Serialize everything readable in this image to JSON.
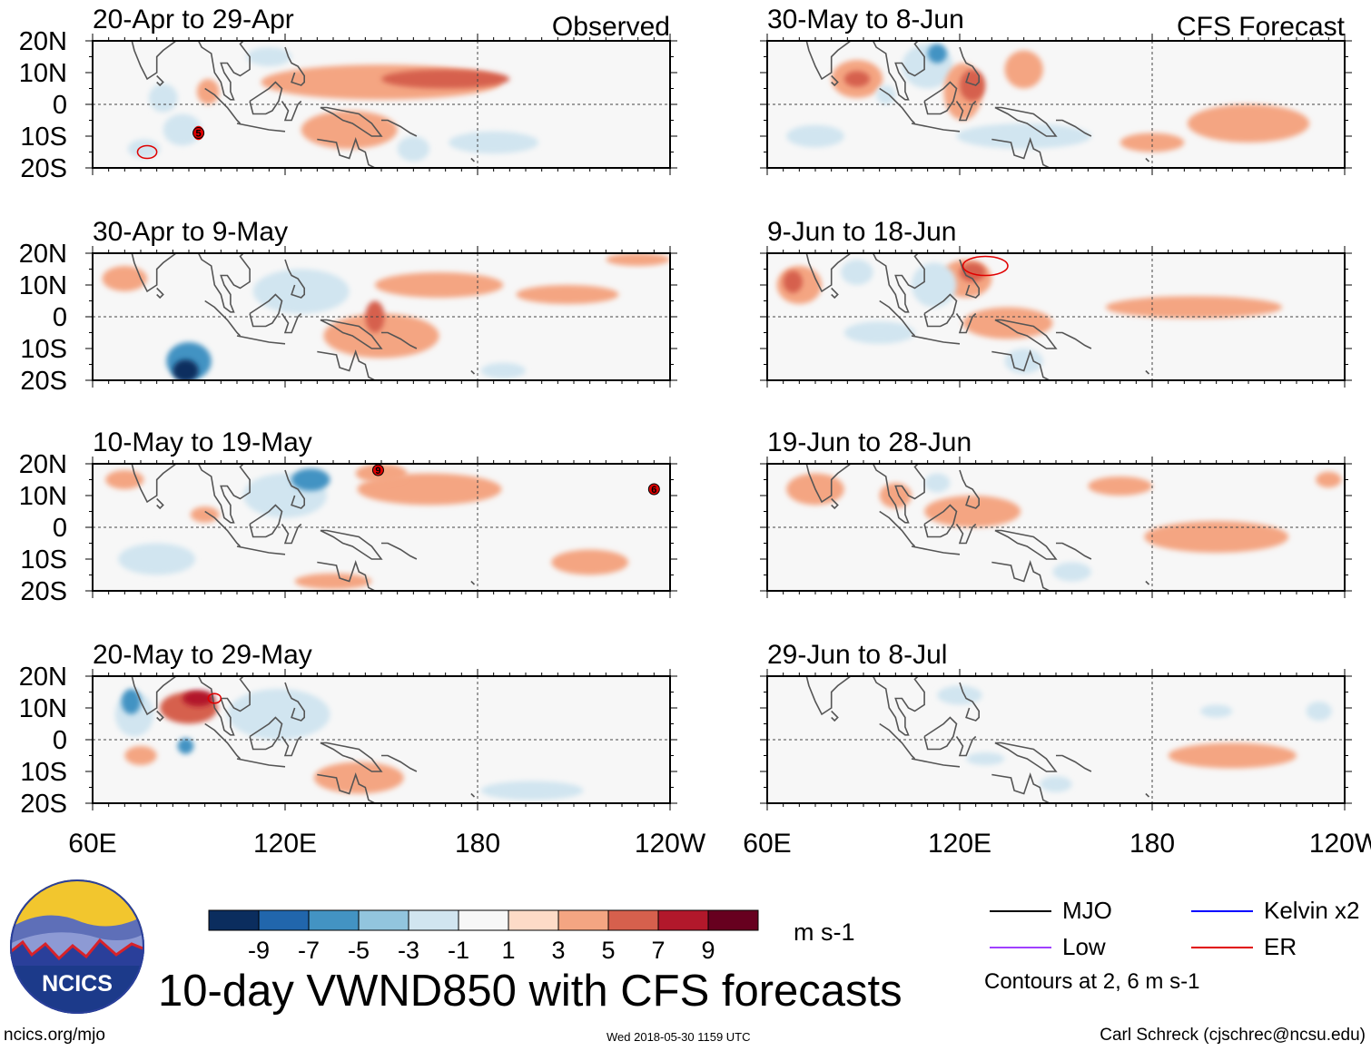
{
  "chart_data": {
    "type": "heatmap",
    "title": "10-day VWND850 with CFS forecasts",
    "variable": "850-hPa meridional wind anomaly",
    "units": "m s-1",
    "x_ticks": [
      "60E",
      "120E",
      "180",
      "120W"
    ],
    "y_ticks": [
      "20N",
      "10N",
      "0",
      "10S",
      "20S"
    ],
    "xlim_deg_east": [
      60,
      240
    ],
    "ylim_deg": [
      -20,
      20
    ],
    "column_headers": [
      "Observed",
      "CFS Forecast"
    ],
    "colorbar": {
      "ticks": [
        "-9",
        "-7",
        "-5",
        "-3",
        "-1",
        "1",
        "3",
        "5",
        "7",
        "9"
      ],
      "colors": [
        "#0b2d5e",
        "#2166ac",
        "#4393c3",
        "#92c5de",
        "#d1e5f0",
        "#f7f7f7",
        "#fddbc7",
        "#f4a582",
        "#d6604d",
        "#b2182b",
        "#67001f"
      ]
    },
    "panels": [
      {
        "title": "20-Apr to 29-Apr",
        "source": "Observed",
        "blobs": [
          {
            "lon": 170,
            "lat": 8,
            "value": 5,
            "w": 40,
            "h": 6
          },
          {
            "lon": 150,
            "lat": 7,
            "value": 3,
            "w": 75,
            "h": 11
          },
          {
            "lon": 82,
            "lat": 2,
            "value": -3,
            "w": 9,
            "h": 9
          },
          {
            "lon": 88,
            "lat": -8,
            "value": -3,
            "w": 12,
            "h": 10
          },
          {
            "lon": 140,
            "lat": -8,
            "value": 3,
            "w": 30,
            "h": 12
          },
          {
            "lon": 160,
            "lat": -14,
            "value": -3,
            "w": 10,
            "h": 8
          },
          {
            "lon": 76,
            "lat": -14,
            "value": -3,
            "w": 10,
            "h": 6
          },
          {
            "lon": 96,
            "lat": 4,
            "value": 3,
            "w": 7,
            "h": 8
          },
          {
            "lon": 185,
            "lat": -12,
            "value": -3,
            "w": 28,
            "h": 7
          },
          {
            "lon": 115,
            "lat": 15,
            "value": -3,
            "w": 14,
            "h": 6
          }
        ],
        "contours": [
          {
            "lon": 77,
            "lat": -15,
            "rx": 3,
            "ry": 2
          },
          {
            "lon": 93,
            "lat": -9,
            "rx": 1.5,
            "ry": 2
          }
        ],
        "tc_symbols": [
          {
            "lon": 93,
            "lat": -9,
            "label": "5"
          }
        ]
      },
      {
        "title": "30-Apr to 9-May",
        "source": "Observed",
        "blobs": [
          {
            "lon": 89,
            "lat": -17,
            "value": -9,
            "w": 8,
            "h": 7
          },
          {
            "lon": 90,
            "lat": -14,
            "value": -5,
            "w": 14,
            "h": 12
          },
          {
            "lon": 148,
            "lat": 0,
            "value": 5,
            "w": 6,
            "h": 10
          },
          {
            "lon": 150,
            "lat": -6,
            "value": 3,
            "w": 36,
            "h": 14
          },
          {
            "lon": 168,
            "lat": 10,
            "value": 3,
            "w": 40,
            "h": 8
          },
          {
            "lon": 125,
            "lat": 8,
            "value": -3,
            "w": 30,
            "h": 14
          },
          {
            "lon": 70,
            "lat": 12,
            "value": 3,
            "w": 14,
            "h": 8
          },
          {
            "lon": 188,
            "lat": -17,
            "value": -3,
            "w": 14,
            "h": 5
          },
          {
            "lon": 208,
            "lat": 7,
            "value": 3,
            "w": 32,
            "h": 6
          },
          {
            "lon": 230,
            "lat": 18,
            "value": 3,
            "w": 20,
            "h": 4
          }
        ],
        "contours": [],
        "tc_symbols": []
      },
      {
        "title": "10-May to 19-May",
        "source": "Observed",
        "blobs": [
          {
            "lon": 128,
            "lat": 15,
            "value": -5,
            "w": 12,
            "h": 7
          },
          {
            "lon": 120,
            "lat": 10,
            "value": -3,
            "w": 26,
            "h": 14
          },
          {
            "lon": 165,
            "lat": 12,
            "value": 3,
            "w": 45,
            "h": 10
          },
          {
            "lon": 150,
            "lat": 17,
            "value": 3,
            "w": 16,
            "h": 6
          },
          {
            "lon": 80,
            "lat": -10,
            "value": -3,
            "w": 24,
            "h": 10
          },
          {
            "lon": 70,
            "lat": 15,
            "value": 3,
            "w": 12,
            "h": 6
          },
          {
            "lon": 215,
            "lat": -11,
            "value": 3,
            "w": 24,
            "h": 8
          },
          {
            "lon": 135,
            "lat": -17,
            "value": 3,
            "w": 24,
            "h": 5
          },
          {
            "lon": 95,
            "lat": 4,
            "value": 3,
            "w": 9,
            "h": 5
          }
        ],
        "contours": [],
        "tc_symbols": [
          {
            "lon": 149,
            "lat": 18,
            "label": "9"
          },
          {
            "lon": 235,
            "lat": 12,
            "label": "6"
          }
        ]
      },
      {
        "title": "20-May to 29-May",
        "source": "Observed",
        "blobs": [
          {
            "lon": 93,
            "lat": 13,
            "value": 7,
            "w": 10,
            "h": 5
          },
          {
            "lon": 90,
            "lat": 10,
            "value": 5,
            "w": 18,
            "h": 10
          },
          {
            "lon": 72,
            "lat": 12,
            "value": -5,
            "w": 6,
            "h": 8
          },
          {
            "lon": 73,
            "lat": 8,
            "value": -3,
            "w": 12,
            "h": 14
          },
          {
            "lon": 89,
            "lat": -2,
            "value": -5,
            "w": 5,
            "h": 5
          },
          {
            "lon": 118,
            "lat": 8,
            "value": -3,
            "w": 32,
            "h": 16
          },
          {
            "lon": 143,
            "lat": -12,
            "value": 3,
            "w": 28,
            "h": 10
          },
          {
            "lon": 197,
            "lat": -16,
            "value": -3,
            "w": 32,
            "h": 6
          },
          {
            "lon": 75,
            "lat": -5,
            "value": 3,
            "w": 10,
            "h": 6
          }
        ],
        "contours": [
          {
            "lon": 98,
            "lat": 13,
            "rx": 2,
            "ry": 1.5
          }
        ],
        "tc_symbols": []
      },
      {
        "title": "30-May to 8-Jun",
        "source": "CFS Forecast",
        "blobs": [
          {
            "lon": 113,
            "lat": 16,
            "value": -5,
            "w": 6,
            "h": 6
          },
          {
            "lon": 110,
            "lat": 12,
            "value": -3,
            "w": 16,
            "h": 14
          },
          {
            "lon": 124,
            "lat": 6,
            "value": 5,
            "w": 8,
            "h": 10
          },
          {
            "lon": 121,
            "lat": 4,
            "value": 3,
            "w": 12,
            "h": 18
          },
          {
            "lon": 88,
            "lat": 8,
            "value": 5,
            "w": 8,
            "h": 5
          },
          {
            "lon": 88,
            "lat": 8,
            "value": 3,
            "w": 16,
            "h": 12
          },
          {
            "lon": 140,
            "lat": 11,
            "value": 3,
            "w": 12,
            "h": 12
          },
          {
            "lon": 140,
            "lat": -10,
            "value": -3,
            "w": 42,
            "h": 8
          },
          {
            "lon": 75,
            "lat": -10,
            "value": -3,
            "w": 18,
            "h": 7
          },
          {
            "lon": 210,
            "lat": -6,
            "value": 3,
            "w": 38,
            "h": 12
          },
          {
            "lon": 180,
            "lat": -12,
            "value": 3,
            "w": 20,
            "h": 6
          },
          {
            "lon": 97,
            "lat": 3,
            "value": -3,
            "w": 6,
            "h": 6
          }
        ],
        "contours": [],
        "tc_symbols": []
      },
      {
        "title": "9-Jun to 18-Jun",
        "source": "CFS Forecast",
        "blobs": [
          {
            "lon": 124,
            "lat": 14,
            "value": 5,
            "w": 8,
            "h": 6
          },
          {
            "lon": 122,
            "lat": 12,
            "value": 3,
            "w": 16,
            "h": 12
          },
          {
            "lon": 68,
            "lat": 11,
            "value": 5,
            "w": 6,
            "h": 7
          },
          {
            "lon": 70,
            "lat": 10,
            "value": 3,
            "w": 14,
            "h": 12
          },
          {
            "lon": 112,
            "lat": 10,
            "value": -3,
            "w": 14,
            "h": 14
          },
          {
            "lon": 88,
            "lat": 14,
            "value": -3,
            "w": 10,
            "h": 8
          },
          {
            "lon": 193,
            "lat": 3,
            "value": 3,
            "w": 55,
            "h": 7
          },
          {
            "lon": 140,
            "lat": -14,
            "value": -3,
            "w": 12,
            "h": 8
          },
          {
            "lon": 135,
            "lat": -2,
            "value": 3,
            "w": 28,
            "h": 10
          },
          {
            "lon": 95,
            "lat": -5,
            "value": -3,
            "w": 22,
            "h": 7
          }
        ],
        "contours": [
          {
            "lon": 128,
            "lat": 16,
            "rx": 7,
            "ry": 3
          }
        ],
        "tc_symbols": []
      },
      {
        "title": "19-Jun to 28-Jun",
        "source": "CFS Forecast",
        "blobs": [
          {
            "lon": 124,
            "lat": 5,
            "value": 3,
            "w": 30,
            "h": 10
          },
          {
            "lon": 200,
            "lat": -3,
            "value": 3,
            "w": 45,
            "h": 10
          },
          {
            "lon": 75,
            "lat": 12,
            "value": 3,
            "w": 18,
            "h": 10
          },
          {
            "lon": 100,
            "lat": 10,
            "value": 3,
            "w": 10,
            "h": 8
          },
          {
            "lon": 113,
            "lat": 14,
            "value": -3,
            "w": 8,
            "h": 6
          },
          {
            "lon": 155,
            "lat": -14,
            "value": -3,
            "w": 12,
            "h": 6
          },
          {
            "lon": 170,
            "lat": 13,
            "value": 3,
            "w": 20,
            "h": 6
          },
          {
            "lon": 235,
            "lat": 15,
            "value": 3,
            "w": 8,
            "h": 5
          }
        ],
        "contours": [],
        "tc_symbols": []
      },
      {
        "title": "29-Jun to 8-Jul",
        "source": "CFS Forecast",
        "blobs": [
          {
            "lon": 205,
            "lat": -5,
            "value": 3,
            "w": 40,
            "h": 8
          },
          {
            "lon": 150,
            "lat": -14,
            "value": -3,
            "w": 10,
            "h": 5
          },
          {
            "lon": 120,
            "lat": 14,
            "value": -3,
            "w": 14,
            "h": 6
          },
          {
            "lon": 200,
            "lat": 9,
            "value": -3,
            "w": 10,
            "h": 4
          },
          {
            "lon": 128,
            "lat": -6,
            "value": -3,
            "w": 12,
            "h": 4
          },
          {
            "lon": 232,
            "lat": 9,
            "value": -3,
            "w": 8,
            "h": 6
          }
        ],
        "contours": [],
        "tc_symbols": []
      }
    ]
  },
  "legend": {
    "entries": [
      {
        "label": "MJO",
        "color": "#000000"
      },
      {
        "label": "Kelvin x2",
        "color": "#0000ff"
      },
      {
        "label": "Low",
        "color": "#a040ff"
      },
      {
        "label": "ER",
        "color": "#e00000"
      }
    ],
    "contour_note": "Contours at 2, 6 m s-1"
  },
  "logo": {
    "text": "NCICS"
  },
  "footer": {
    "left": "ncics.org/mjo",
    "timestamp": "Wed 2018-05-30 1159 UTC",
    "credit": "Carl Schreck (cjschrec@ncsu.edu)"
  }
}
